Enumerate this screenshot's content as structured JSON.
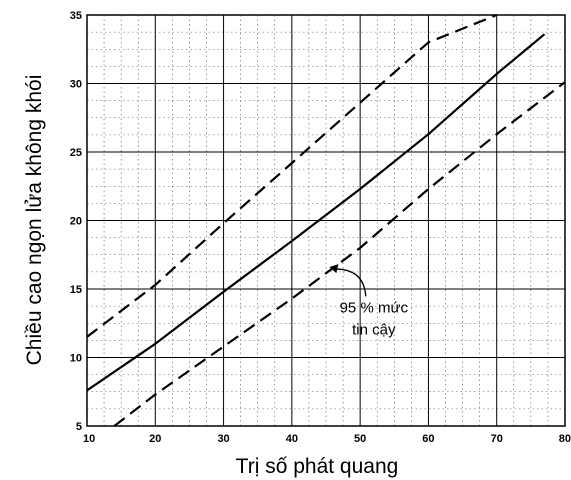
{
  "chart_data": {
    "type": "line",
    "xlabel": "Trị số phát quang",
    "ylabel": "Chiều cao ngọn lửa không  khói",
    "xlim": [
      10,
      80
    ],
    "ylim": [
      5,
      35
    ],
    "x_ticks": [
      10,
      20,
      30,
      40,
      50,
      60,
      70,
      80
    ],
    "y_ticks": [
      5,
      10,
      15,
      20,
      25,
      30,
      35
    ],
    "grid": true,
    "series": [
      {
        "style": "dashed",
        "points": [
          [
            10,
            11.5
          ],
          [
            20,
            15.3
          ],
          [
            30,
            19.8
          ],
          [
            40,
            24.2
          ],
          [
            50,
            28.6
          ],
          [
            60,
            33.0
          ],
          [
            70,
            35.0
          ]
        ]
      },
      {
        "style": "solid",
        "points": [
          [
            10,
            7.6
          ],
          [
            20,
            11.0
          ],
          [
            30,
            14.8
          ],
          [
            40,
            18.5
          ],
          [
            50,
            22.3
          ],
          [
            60,
            26.3
          ],
          [
            70,
            30.7
          ],
          [
            77,
            33.6
          ]
        ]
      },
      {
        "style": "dashed",
        "points": [
          [
            14,
            5.0
          ],
          [
            20,
            7.3
          ],
          [
            30,
            10.8
          ],
          [
            40,
            14.3
          ],
          [
            50,
            18.0
          ],
          [
            60,
            22.3
          ],
          [
            70,
            26.3
          ],
          [
            80,
            30.1
          ]
        ]
      }
    ],
    "annotation": {
      "line1": "95 % mức",
      "line2": "tin cậy",
      "arrow_tip": [
        45.5,
        16.6
      ],
      "text_at": [
        52,
        13.3
      ]
    }
  }
}
